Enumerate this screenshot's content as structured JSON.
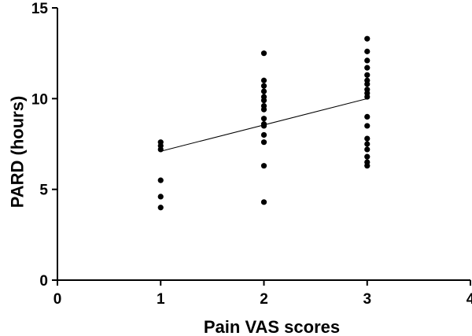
{
  "chart_data": {
    "type": "scatter",
    "title": "",
    "xlabel": "Pain VAS scores",
    "ylabel": "PARD (hours)",
    "xlim": [
      0,
      4
    ],
    "ylim": [
      0,
      15
    ],
    "xticks": [
      "0",
      "1",
      "2",
      "3",
      "4"
    ],
    "yticks": [
      "0",
      "5",
      "10",
      "15"
    ],
    "grid": false,
    "legend": "none",
    "series": [
      {
        "points": [
          {
            "x": 1,
            "y": 7.6
          },
          {
            "x": 1,
            "y": 7.4
          },
          {
            "x": 1,
            "y": 7.2
          },
          {
            "x": 1,
            "y": 5.5
          },
          {
            "x": 1,
            "y": 4.6
          },
          {
            "x": 1,
            "y": 4.0
          },
          {
            "x": 2,
            "y": 12.5
          },
          {
            "x": 2,
            "y": 11.0
          },
          {
            "x": 2,
            "y": 10.7
          },
          {
            "x": 2,
            "y": 10.4
          },
          {
            "x": 2,
            "y": 10.1
          },
          {
            "x": 2,
            "y": 9.9
          },
          {
            "x": 2,
            "y": 9.6
          },
          {
            "x": 2,
            "y": 9.4
          },
          {
            "x": 2,
            "y": 8.9
          },
          {
            "x": 2,
            "y": 8.6
          },
          {
            "x": 2,
            "y": 8.5
          },
          {
            "x": 2,
            "y": 8.0
          },
          {
            "x": 2,
            "y": 7.6
          },
          {
            "x": 2,
            "y": 6.3
          },
          {
            "x": 2,
            "y": 4.3
          },
          {
            "x": 3,
            "y": 13.3
          },
          {
            "x": 3,
            "y": 12.6
          },
          {
            "x": 3,
            "y": 12.1
          },
          {
            "x": 3,
            "y": 11.7
          },
          {
            "x": 3,
            "y": 11.3
          },
          {
            "x": 3,
            "y": 11.0
          },
          {
            "x": 3,
            "y": 10.8
          },
          {
            "x": 3,
            "y": 10.5
          },
          {
            "x": 3,
            "y": 10.3
          },
          {
            "x": 3,
            "y": 10.1
          },
          {
            "x": 3,
            "y": 9.0
          },
          {
            "x": 3,
            "y": 8.5
          },
          {
            "x": 3,
            "y": 7.8
          },
          {
            "x": 3,
            "y": 7.5
          },
          {
            "x": 3,
            "y": 7.2
          },
          {
            "x": 3,
            "y": 6.8
          },
          {
            "x": 3,
            "y": 6.5
          },
          {
            "x": 3,
            "y": 6.3
          }
        ]
      }
    ],
    "trendline": {
      "x": [
        1,
        3
      ],
      "y": [
        7.1,
        10.0
      ]
    }
  }
}
